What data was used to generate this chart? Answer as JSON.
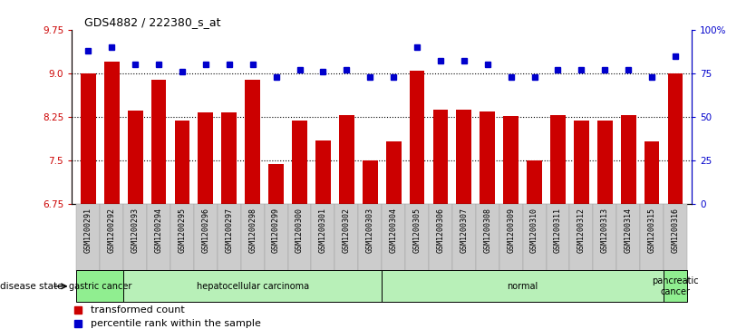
{
  "title": "GDS4882 / 222380_s_at",
  "samples": [
    "GSM1200291",
    "GSM1200292",
    "GSM1200293",
    "GSM1200294",
    "GSM1200295",
    "GSM1200296",
    "GSM1200297",
    "GSM1200298",
    "GSM1200299",
    "GSM1200300",
    "GSM1200301",
    "GSM1200302",
    "GSM1200303",
    "GSM1200304",
    "GSM1200305",
    "GSM1200306",
    "GSM1200307",
    "GSM1200308",
    "GSM1200309",
    "GSM1200310",
    "GSM1200311",
    "GSM1200312",
    "GSM1200313",
    "GSM1200314",
    "GSM1200315",
    "GSM1200316"
  ],
  "bar_values": [
    9.0,
    9.2,
    8.36,
    8.88,
    8.18,
    8.32,
    8.32,
    8.88,
    7.44,
    8.18,
    7.84,
    8.28,
    7.5,
    7.82,
    9.04,
    8.38,
    8.38,
    8.34,
    8.26,
    7.5,
    8.28,
    8.18,
    8.18,
    8.28,
    7.82,
    9.0
  ],
  "percentile_values": [
    88,
    90,
    80,
    80,
    76,
    80,
    80,
    80,
    73,
    77,
    76,
    77,
    73,
    73,
    90,
    82,
    82,
    80,
    73,
    73,
    77,
    77,
    77,
    77,
    73,
    85
  ],
  "bar_color": "#cc0000",
  "percentile_color": "#0000cc",
  "ylim_left": [
    6.75,
    9.75
  ],
  "ylim_right": [
    0,
    100
  ],
  "yticks_left": [
    6.75,
    7.5,
    8.25,
    9.0,
    9.75
  ],
  "yticks_right": [
    0,
    25,
    50,
    75,
    100
  ],
  "groups": [
    {
      "label": "gastric cancer",
      "start": 0,
      "end": 2,
      "color": "#90ee90"
    },
    {
      "label": "hepatocellular carcinoma",
      "start": 2,
      "end": 13,
      "color": "#b8f0b8"
    },
    {
      "label": "normal",
      "start": 13,
      "end": 25,
      "color": "#b8f0b8"
    },
    {
      "label": "pancreatic\ncancer",
      "start": 25,
      "end": 26,
      "color": "#90ee90"
    }
  ],
  "legend_bar_label": "transformed count",
  "legend_pct_label": "percentile rank within the sample",
  "disease_state_label": "disease state"
}
